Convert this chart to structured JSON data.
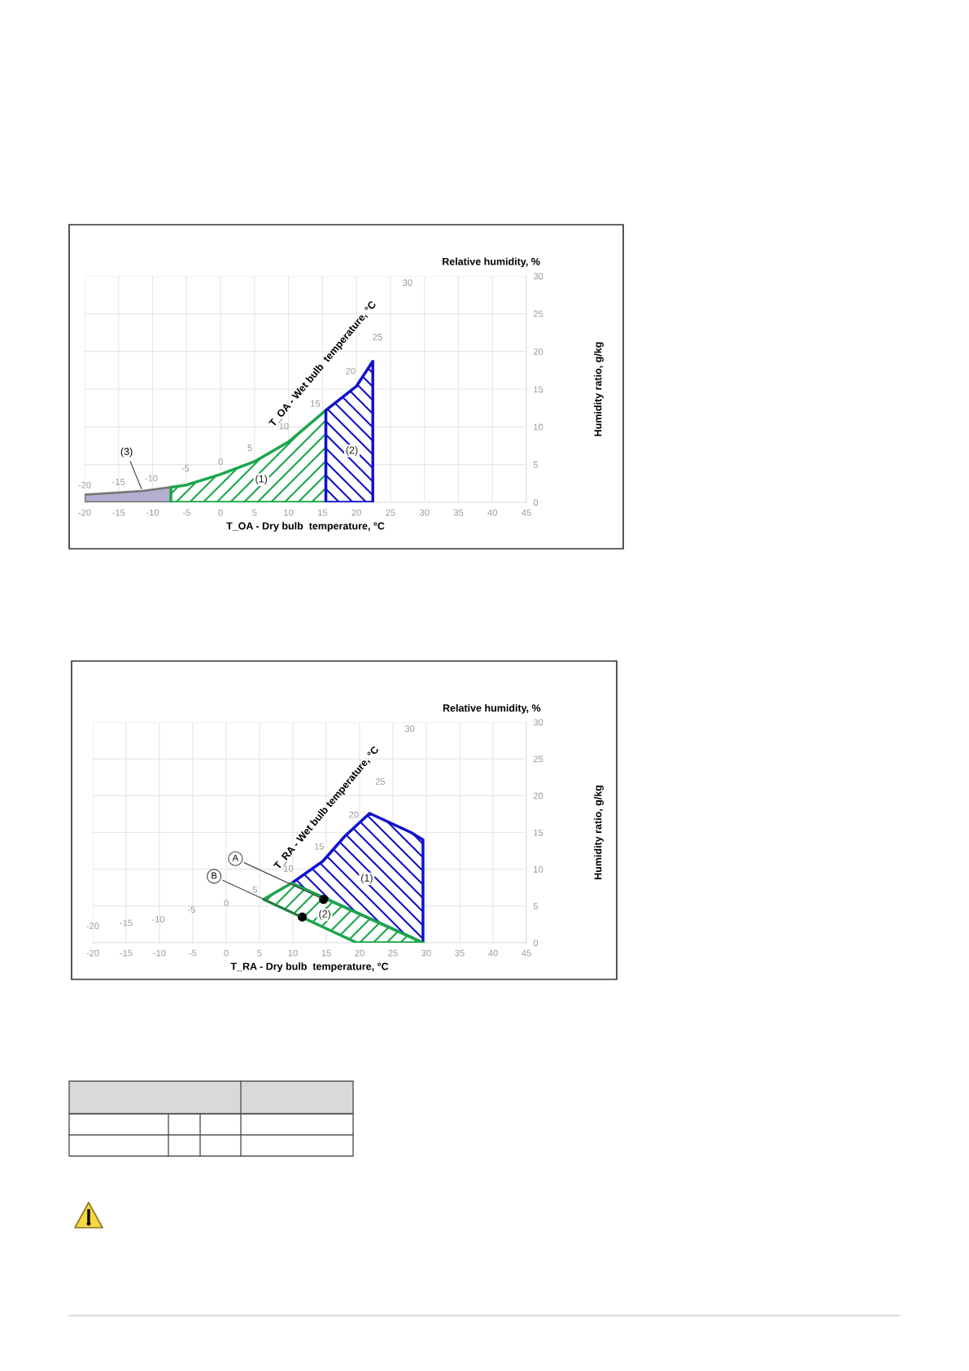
{
  "chart_data": [
    {
      "type": "area",
      "xlabel": "T_OA - Dry bulb  temperature, °C",
      "ylabel": "Humidity ratio, g/kg",
      "xlim": [
        -20,
        45
      ],
      "xticks": [
        -20,
        -15,
        -10,
        -5,
        0,
        5,
        10,
        15,
        20,
        25,
        30,
        35,
        40,
        45
      ],
      "ylim": [
        0,
        30
      ],
      "yticks": [
        0,
        5,
        10,
        15,
        20,
        25,
        30
      ],
      "grid": true,
      "series": [
        {
          "color": "#b4aed0",
          "x": [
            -20,
            -11.5,
            -7.3
          ],
          "values": [
            1.0,
            1.5,
            2.0
          ]
        },
        {
          "color": "#1aa64a",
          "x": [
            -7.3,
            -5,
            0,
            5,
            10,
            15.5
          ],
          "values": [
            2.0,
            2.3,
            3.7,
            5.4,
            8.0,
            12.2
          ]
        },
        {
          "color": "#1010cc",
          "x": [
            15.5,
            20,
            22.4
          ],
          "values": [
            12.2,
            15.4,
            18.7
          ]
        }
      ],
      "annotations": [
        "Relative humidity, %",
        "T_OA - Wet bulb  temperature, °C",
        "(1)",
        "(2)",
        "-20",
        "-15",
        "-10",
        "-5",
        "0",
        "5",
        "10",
        "15",
        "20",
        "25",
        "30",
        {
          "text": "(3)",
          "x": -11.5,
          "y": 1.5
        }
      ]
    },
    {
      "type": "area",
      "xlabel": "T_RA - Dry bulb  temperature, °C",
      "ylabel": "Humidity ratio, g/kg",
      "xlim": [
        -20,
        45
      ],
      "xticks": [
        -20,
        -15,
        -10,
        -5,
        0,
        5,
        10,
        15,
        20,
        25,
        30,
        35,
        40,
        45
      ],
      "ylim": [
        0,
        30
      ],
      "yticks": [
        0,
        5,
        10,
        15,
        20,
        25,
        30
      ],
      "grid": true,
      "series": [
        {
          "color": "#1010cc",
          "x": [
            9.8,
            14.5,
            17.8,
            21.5,
            27.7,
            29.5,
            29.5,
            9.8
          ],
          "values": [
            8.1,
            11.1,
            14.5,
            17.6,
            15.0,
            14.0,
            0,
            8.1
          ]
        },
        {
          "color": "#1aa64a",
          "x": [
            5.6,
            9.8,
            29.5,
            19.6,
            5.6
          ],
          "values": [
            5.9,
            8.1,
            0,
            0,
            5.9
          ]
        },
        {
          "type": "scatter",
          "color": "#000000",
          "marker": "circle",
          "x": [
            14.6,
            11.4
          ],
          "values": [
            5.9,
            3.5
          ],
          "value_labels": [
            "A",
            "B"
          ]
        }
      ],
      "annotations": [
        "Relative humidity, %",
        "T_RA - Wet bulb temperature, °C",
        "(1)",
        "(2)",
        "-20",
        "-15",
        "-10",
        "-5",
        "0",
        "5",
        "10",
        "15",
        "20",
        "25",
        "30"
      ]
    }
  ]
}
